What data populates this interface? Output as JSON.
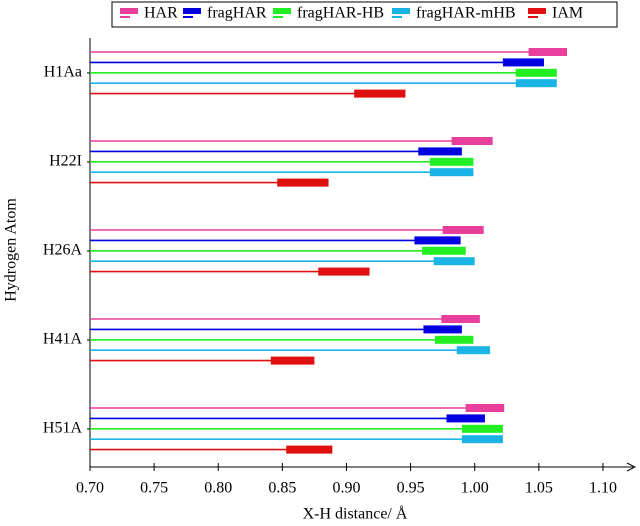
{
  "chart_data": {
    "type": "errorbar-h",
    "xlabel": "X-H distance/ Å",
    "ylabel": "Hydrogen Atom",
    "categories": [
      "H1Aa",
      "H22I",
      "H26A",
      "H41A",
      "H51A"
    ],
    "series": [
      {
        "name": "HAR",
        "color": "#e83e9c",
        "values": [
          1.057,
          0.998,
          0.991,
          0.989,
          1.008
        ],
        "errors": [
          0.015,
          0.016,
          0.016,
          0.015,
          0.015
        ]
      },
      {
        "name": "fragHAR",
        "color": "#0000e0",
        "values": [
          1.038,
          0.973,
          0.971,
          0.975,
          0.993
        ],
        "errors": [
          0.016,
          0.017,
          0.018,
          0.015,
          0.015
        ]
      },
      {
        "name": "fragHAR-HB",
        "color": "#22ee22",
        "values": [
          1.048,
          0.982,
          0.976,
          0.984,
          1.006
        ],
        "errors": [
          0.016,
          0.017,
          0.017,
          0.015,
          0.016
        ]
      },
      {
        "name": "fragHAR-mHB",
        "color": "#1ab4e6",
        "values": [
          1.048,
          0.982,
          0.984,
          0.999,
          1.006
        ],
        "errors": [
          0.016,
          0.017,
          0.016,
          0.013,
          0.016
        ]
      },
      {
        "name": "IAM",
        "color": "#e01010",
        "values": [
          0.926,
          0.866,
          0.898,
          0.858,
          0.871
        ],
        "errors": [
          0.02,
          0.02,
          0.02,
          0.017,
          0.018
        ]
      }
    ],
    "xlim": [
      0.7,
      1.125
    ],
    "xticks": [
      {
        "value": 0.7,
        "label": "0.70"
      },
      0.75,
      {
        "value": 0.8,
        "label": "0.80"
      },
      0.85,
      {
        "value": 0.9,
        "label": "0.90"
      },
      0.95,
      {
        "value": 1.0,
        "label": "1.00"
      },
      1.05,
      {
        "value": 1.1,
        "label": "1.10"
      }
    ],
    "legend": "top"
  }
}
